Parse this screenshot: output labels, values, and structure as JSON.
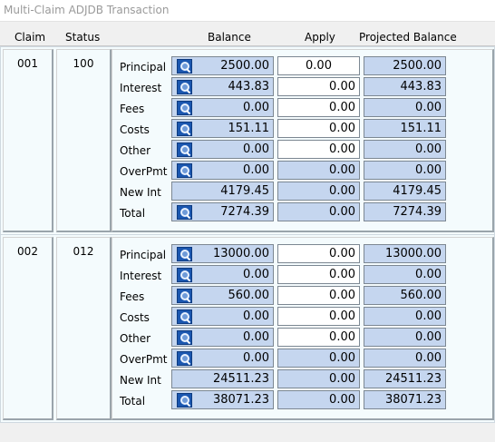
{
  "window": {
    "title": "Multi-Claim ADJDB Transaction"
  },
  "headers": {
    "claim": "Claim",
    "status": "Status",
    "balance": "Balance",
    "apply": "Apply",
    "projected": "Projected Balance"
  },
  "claims": [
    {
      "claim": "001",
      "status": "100",
      "rows": [
        {
          "label": "Principal",
          "balance": "2500.00",
          "apply": "0.00",
          "projected": "2500.00"
        },
        {
          "label": "Interest",
          "balance": "443.83",
          "apply": "0.00",
          "projected": "443.83"
        },
        {
          "label": "Fees",
          "balance": "0.00",
          "apply": "0.00",
          "projected": "0.00"
        },
        {
          "label": "Costs",
          "balance": "151.11",
          "apply": "0.00",
          "projected": "151.11"
        },
        {
          "label": "Other",
          "balance": "0.00",
          "apply": "0.00",
          "projected": "0.00"
        },
        {
          "label": "OverPmt",
          "balance": "0.00",
          "apply": "0.00",
          "projected": "0.00"
        },
        {
          "label": "New Int",
          "balance": "4179.45",
          "apply": "0.00",
          "projected": "4179.45"
        },
        {
          "label": "Total",
          "balance": "7274.39",
          "apply": "0.00",
          "projected": "7274.39"
        }
      ]
    },
    {
      "claim": "002",
      "status": "012",
      "rows": [
        {
          "label": "Principal",
          "balance": "13000.00",
          "apply": "0.00",
          "projected": "13000.00"
        },
        {
          "label": "Interest",
          "balance": "0.00",
          "apply": "0.00",
          "projected": "0.00"
        },
        {
          "label": "Fees",
          "balance": "560.00",
          "apply": "0.00",
          "projected": "560.00"
        },
        {
          "label": "Costs",
          "balance": "0.00",
          "apply": "0.00",
          "projected": "0.00"
        },
        {
          "label": "Other",
          "balance": "0.00",
          "apply": "0.00",
          "projected": "0.00"
        },
        {
          "label": "OverPmt",
          "balance": "0.00",
          "apply": "0.00",
          "projected": "0.00"
        },
        {
          "label": "New Int",
          "balance": "24511.23",
          "apply": "0.00",
          "projected": "24511.23"
        },
        {
          "label": "Total",
          "balance": "38071.23",
          "apply": "0.00",
          "projected": "38071.23"
        }
      ]
    }
  ],
  "icons": {
    "lookup": "magnifier-icon"
  },
  "colors": {
    "readonly_field": "#c5d6ef",
    "editable_field": "#ffffff",
    "lookup_icon": "#1b57b0"
  }
}
